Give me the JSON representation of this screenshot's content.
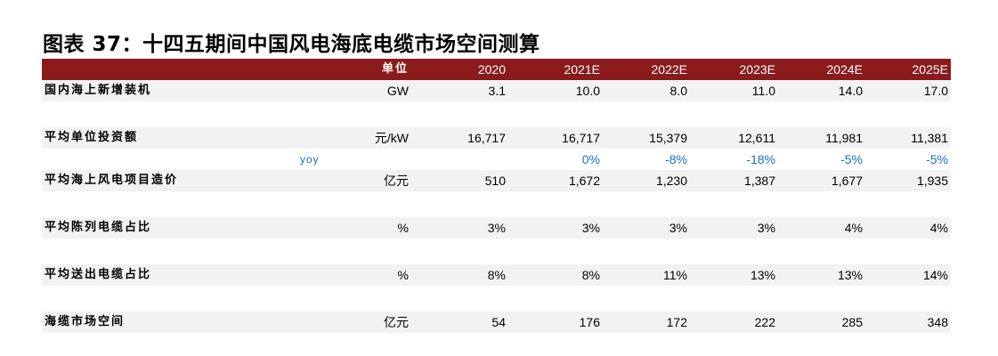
{
  "title": "图表 37：十四五期间中国风电海底电缆市场空间测算",
  "header": {
    "unit_label": "单位",
    "years": [
      "2020",
      "2021E",
      "2022E",
      "2023E",
      "2024E",
      "2025E"
    ]
  },
  "rows": [
    {
      "label": "国内海上新增装机",
      "unit": "GW",
      "values": [
        "3.1",
        "10.0",
        "8.0",
        "11.0",
        "14.0",
        "17.0"
      ]
    },
    {
      "label": "平均单位投资额",
      "unit": "元/kW",
      "values": [
        "16,717",
        "16,717",
        "15,379",
        "12,611",
        "11,981",
        "11,381"
      ]
    },
    {
      "label": "yoy",
      "unit": "",
      "values": [
        "",
        "0%",
        "-8%",
        "-18%",
        "-5%",
        "-5%"
      ]
    },
    {
      "label": "平均海上风电项目造价",
      "unit": "亿元",
      "values": [
        "510",
        "1,672",
        "1,230",
        "1,387",
        "1,677",
        "1,935"
      ]
    },
    {
      "label": "平均陈列电缆占比",
      "unit": "%",
      "values": [
        "3%",
        "3%",
        "3%",
        "3%",
        "4%",
        "4%"
      ]
    },
    {
      "label": "平均送出电缆占比",
      "unit": "%",
      "values": [
        "8%",
        "8%",
        "11%",
        "13%",
        "13%",
        "14%"
      ]
    },
    {
      "label": "海缆市场空间",
      "unit": "亿元",
      "values": [
        "54",
        "176",
        "172",
        "222",
        "285",
        "348"
      ]
    }
  ]
}
